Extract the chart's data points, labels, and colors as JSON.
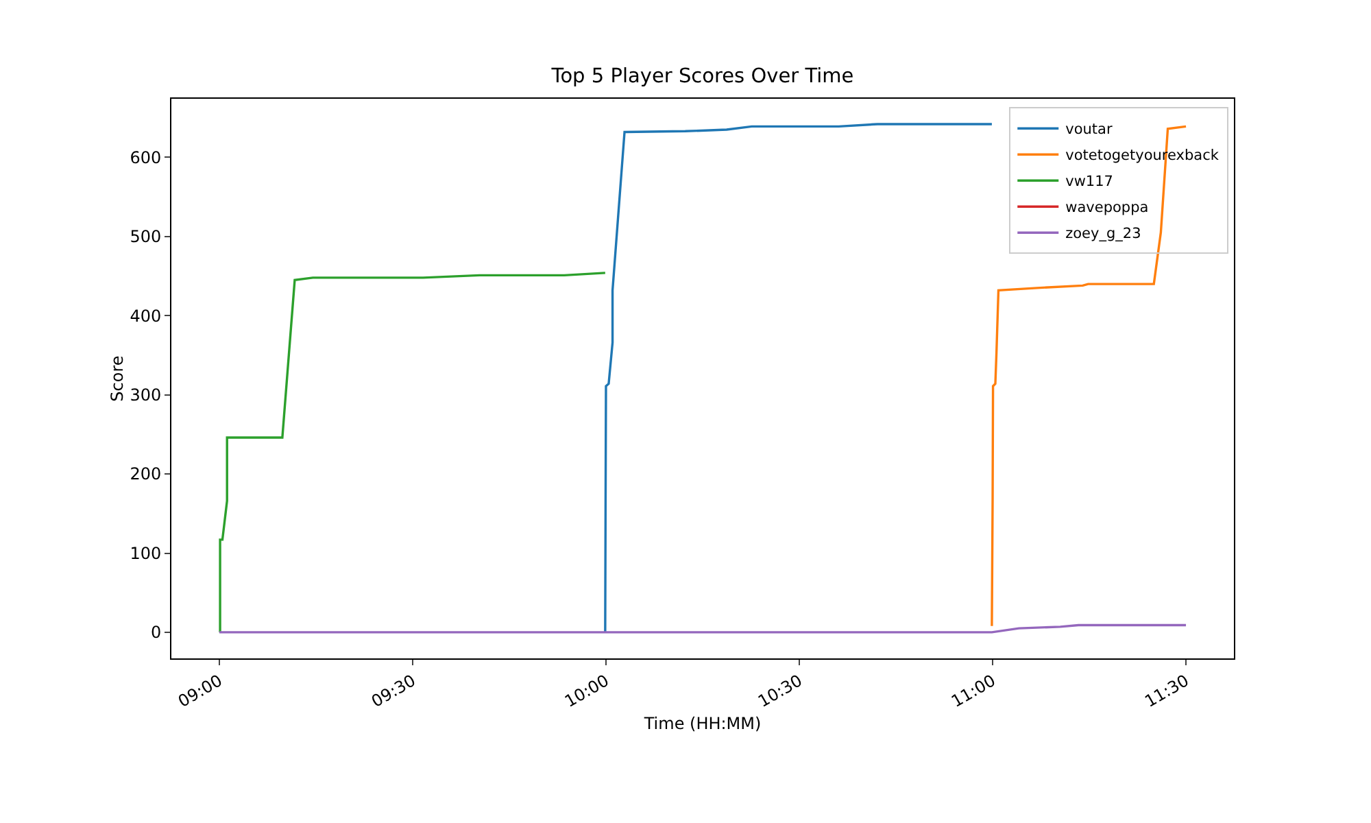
{
  "chart_data": {
    "type": "line",
    "title": "Top 5 Player Scores Over Time",
    "xlabel": "Time (HH:MM)",
    "ylabel": "Score",
    "xlim": [
      8.876,
      11.624
    ],
    "xticks": [
      {
        "value": 9,
        "label": "09:00"
      },
      {
        "value": 9.5,
        "label": "09:30"
      },
      {
        "value": 10,
        "label": "10:00"
      },
      {
        "value": 10.5,
        "label": "10:30"
      },
      {
        "value": 11,
        "label": "11:00"
      },
      {
        "value": 11.5,
        "label": "11:30"
      }
    ],
    "ylim": [
      -33,
      674
    ],
    "yticks": [
      0,
      100,
      200,
      300,
      400,
      500,
      600
    ],
    "grid": false,
    "legend": "top right",
    "marker": "none",
    "line_style": "solid",
    "series": [
      {
        "name": "voutar",
        "color": "#1f77b4",
        "x": [
          9.998,
          9.999,
          10.0,
          10.007,
          10.017,
          10.017,
          10.048,
          10.205,
          10.312,
          10.377,
          10.602,
          10.702,
          10.998
        ],
        "values": [
          0,
          169,
          311,
          314,
          366,
          432,
          632,
          633,
          635,
          639,
          639,
          642,
          642
        ]
      },
      {
        "name": "votetogetyourexback",
        "color": "#ff7f0e",
        "x": [
          10.998,
          11.0,
          11.001,
          11.007,
          11.01,
          11.015,
          11.115,
          11.233,
          11.247,
          11.417,
          11.435,
          11.453,
          11.5
        ],
        "values": [
          8,
          169,
          311,
          314,
          354,
          432,
          435,
          438,
          440,
          440,
          505,
          636,
          639
        ]
      },
      {
        "name": "vw117",
        "color": "#2ca02c",
        "x": [
          9.002,
          9.002,
          9.008,
          9.02,
          9.02,
          9.163,
          9.195,
          9.242,
          9.527,
          9.673,
          9.892,
          9.998
        ],
        "values": [
          0,
          117,
          117,
          166,
          246,
          246,
          445,
          448,
          448,
          451,
          451,
          454
        ]
      },
      {
        "name": "wavepoppa",
        "color": "#d62728"
      },
      {
        "name": "zoey_g_23",
        "color": "#9467bd",
        "x": [
          9.0,
          10.998,
          11.068,
          11.175,
          11.222,
          11.5
        ],
        "values": [
          0,
          0,
          5,
          7,
          9,
          9
        ]
      }
    ]
  }
}
